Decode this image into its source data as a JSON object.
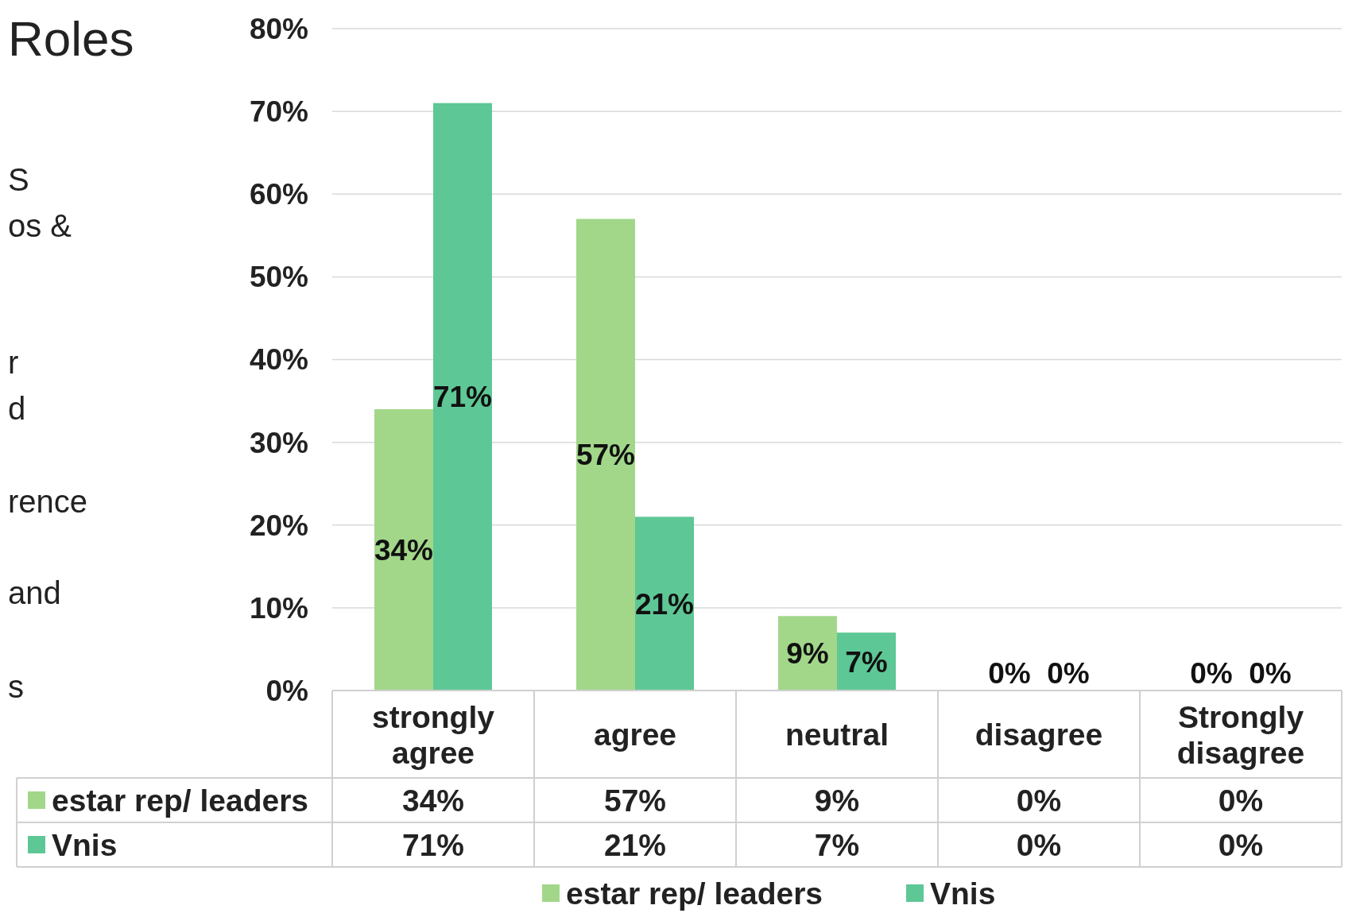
{
  "chart_data": {
    "type": "bar",
    "title": "Roles",
    "annotations": [
      "S",
      "os &",
      "r",
      "d",
      "rence",
      "and",
      "s"
    ],
    "categories": [
      "strongly agree",
      "agree",
      "neutral",
      "disagree",
      "Strongly disagree"
    ],
    "series": [
      {
        "name": "estar rep/ leaders",
        "color": "#a2d78a",
        "values": [
          34,
          57,
          9,
          0,
          0
        ],
        "value_labels": [
          "34%",
          "57%",
          "9%",
          "0%",
          "0%"
        ]
      },
      {
        "name": "Vnis",
        "color": "#5ec796",
        "values": [
          71,
          21,
          7,
          0,
          0
        ],
        "value_labels": [
          "71%",
          "21%",
          "7%",
          "0%",
          "0%"
        ]
      }
    ],
    "ylim": [
      0,
      80
    ],
    "yticks": [
      {
        "value": 0,
        "label": "0%"
      },
      {
        "value": 10,
        "label": "10%"
      },
      {
        "value": 20,
        "label": "20%"
      },
      {
        "value": 30,
        "label": "30%"
      },
      {
        "value": 40,
        "label": "40%"
      },
      {
        "value": 50,
        "label": "50%"
      },
      {
        "value": 60,
        "label": "60%"
      },
      {
        "value": 70,
        "label": "70%"
      },
      {
        "value": 80,
        "label": "80%"
      }
    ],
    "grid": "y",
    "legend": "bottom"
  }
}
